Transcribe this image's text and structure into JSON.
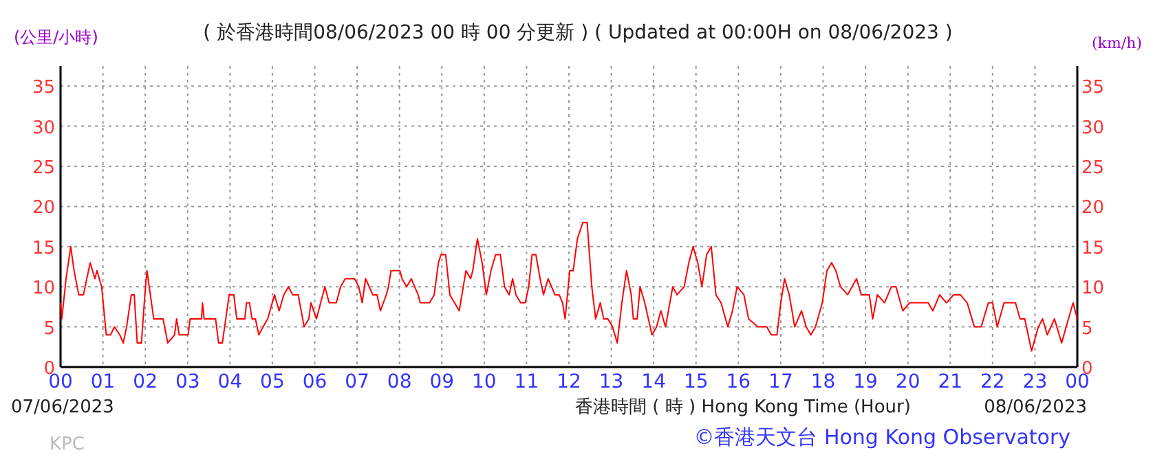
{
  "chart_data": {
    "type": "line",
    "title": "( 於香港時間08/06/2023 00 時 00 分更新 ) ( Updated at 00:00H on 08/06/2023 )",
    "ylabel": "(公里/小時)",
    "y2label": "(km/h)",
    "xlabel": "香港時間 ( 時 ) Hong Kong Time (Hour)",
    "annotations": [
      "07/06/2023",
      "08/06/2023",
      "KPC",
      "©香港天文台 Hong Kong Observatory"
    ],
    "xlim": [
      0,
      24
    ],
    "xticks": [
      {
        "value": 0,
        "label": "00"
      },
      {
        "value": 1,
        "label": "01"
      },
      {
        "value": 2,
        "label": "02"
      },
      {
        "value": 3,
        "label": "03"
      },
      {
        "value": 4,
        "label": "04"
      },
      {
        "value": 5,
        "label": "05"
      },
      {
        "value": 6,
        "label": "06"
      },
      {
        "value": 7,
        "label": "07"
      },
      {
        "value": 8,
        "label": "08"
      },
      {
        "value": 9,
        "label": "09"
      },
      {
        "value": 10,
        "label": "10"
      },
      {
        "value": 11,
        "label": "11"
      },
      {
        "value": 12,
        "label": "12"
      },
      {
        "value": 13,
        "label": "13"
      },
      {
        "value": 14,
        "label": "14"
      },
      {
        "value": 15,
        "label": "15"
      },
      {
        "value": 16,
        "label": "16"
      },
      {
        "value": 17,
        "label": "17"
      },
      {
        "value": 18,
        "label": "18"
      },
      {
        "value": 19,
        "label": "19"
      },
      {
        "value": 20,
        "label": "20"
      },
      {
        "value": 21,
        "label": "21"
      },
      {
        "value": 22,
        "label": "22"
      },
      {
        "value": 23,
        "label": "23"
      },
      {
        "value": 24,
        "label": "00"
      }
    ],
    "ylim": [
      0,
      37.5
    ],
    "yticks": [
      0,
      5,
      10,
      15,
      20,
      25,
      30,
      35
    ],
    "y2lim": [
      0,
      37.5
    ],
    "y2ticks": [
      0,
      5,
      10,
      15,
      20,
      25,
      30,
      35
    ],
    "grid": true,
    "marker": "none",
    "line_style": "solid",
    "series": [
      {
        "color": "#ff0000",
        "x": [
          0,
          0.03,
          0.13,
          0.24,
          0.32,
          0.43,
          0.54,
          0.7,
          0.81,
          0.86,
          0.97,
          1.08,
          1.18,
          1.27,
          1.4,
          1.48,
          1.56,
          1.67,
          1.74,
          1.81,
          1.91,
          1.99,
          2.04,
          2.2,
          2.42,
          2.53,
          2.69,
          2.74,
          2.8,
          3.01,
          3.06,
          3.33,
          3.35,
          3.39,
          3.66,
          3.73,
          3.82,
          3.98,
          4.09,
          4.16,
          4.35,
          4.39,
          4.46,
          4.52,
          4.6,
          4.68,
          4.78,
          4.89,
          5.05,
          5.16,
          5.27,
          5.38,
          5.48,
          5.61,
          5.75,
          5.86,
          5.91,
          6.04,
          6.24,
          6.34,
          6.51,
          6.61,
          6.72,
          6.94,
          7.04,
          7.12,
          7.2,
          7.37,
          7.47,
          7.55,
          7.69,
          7.74,
          7.8,
          8.01,
          8.06,
          8.17,
          8.28,
          8.44,
          8.49,
          8.71,
          8.82,
          8.92,
          8.98,
          9.09,
          9.19,
          9.3,
          9.41,
          9.57,
          9.68,
          9.73,
          9.84,
          9.95,
          10.05,
          10.16,
          10.27,
          10.38,
          10.48,
          10.59,
          10.67,
          10.75,
          10.86,
          10.97,
          11.05,
          11.13,
          11.22,
          11.32,
          11.4,
          11.51,
          11.59,
          11.67,
          11.77,
          11.85,
          11.91,
          12.02,
          12.1,
          12.2,
          12.33,
          12.43,
          12.54,
          12.63,
          12.74,
          12.82,
          12.92,
          13.03,
          13.14,
          13.25,
          13.36,
          13.47,
          13.52,
          13.61,
          13.68,
          13.79,
          13.96,
          14.07,
          14.17,
          14.28,
          14.45,
          14.55,
          14.72,
          14.83,
          14.93,
          15.04,
          15.14,
          15.25,
          15.36,
          15.47,
          15.59,
          15.75,
          15.86,
          15.97,
          16.13,
          16.24,
          16.46,
          16.67,
          16.78,
          16.91,
          17.0,
          17.09,
          17.2,
          17.33,
          17.49,
          17.6,
          17.71,
          17.82,
          17.98,
          18.09,
          18.2,
          18.3,
          18.41,
          18.58,
          18.68,
          18.79,
          18.9,
          19.09,
          19.17,
          19.28,
          19.45,
          19.61,
          19.72,
          19.88,
          20.04,
          20.26,
          20.48,
          20.59,
          20.75,
          20.91,
          21.08,
          21.24,
          21.4,
          21.57,
          21.73,
          21.9,
          22.0,
          22.11,
          22.27,
          22.54,
          22.65,
          22.76,
          22.92,
          23.08,
          23.18,
          23.29,
          23.46,
          23.63,
          23.79,
          23.9,
          24
        ],
        "values": [
          8,
          6,
          11,
          15,
          12,
          9,
          9,
          13,
          11,
          12,
          10,
          4,
          4,
          5,
          4,
          3,
          5,
          9,
          9,
          3,
          3,
          9,
          12,
          6,
          6,
          3,
          4,
          6,
          4,
          4,
          6,
          6,
          8,
          6,
          6,
          3,
          3,
          9,
          9,
          6,
          6,
          8,
          8,
          6,
          6,
          4,
          5,
          6,
          9,
          7,
          9,
          10,
          9,
          9,
          5,
          6,
          8,
          6,
          10,
          8,
          8,
          10,
          11,
          11,
          10,
          8,
          11,
          9,
          9,
          7,
          9,
          10,
          12,
          12,
          11,
          10,
          11,
          9,
          8,
          8,
          9,
          13,
          14,
          14,
          9,
          8,
          7,
          12,
          11,
          12,
          16,
          13,
          9,
          12,
          14,
          14,
          10,
          9,
          11,
          9,
          8,
          8,
          10,
          14,
          14,
          11,
          9,
          11,
          10,
          9,
          9,
          8,
          6,
          12,
          12,
          16,
          18,
          18,
          10,
          6,
          8,
          6,
          6,
          5,
          3,
          8,
          12,
          9,
          6,
          6,
          10,
          8,
          4,
          5,
          7,
          5,
          10,
          9,
          10,
          13,
          15,
          13,
          10,
          14,
          15,
          9,
          8,
          5,
          7,
          10,
          9,
          6,
          5,
          5,
          4,
          4,
          8,
          11,
          9,
          5,
          7,
          5,
          4,
          5,
          8,
          12,
          13,
          12,
          10,
          9,
          10,
          11,
          9,
          9,
          6,
          9,
          8,
          10,
          10,
          7,
          8,
          8,
          8,
          7,
          9,
          8,
          9,
          9,
          8,
          5,
          5,
          8,
          8,
          5,
          8,
          8,
          6,
          6,
          2,
          5,
          6,
          4,
          6,
          3,
          6,
          8,
          6
        ]
      }
    ]
  }
}
